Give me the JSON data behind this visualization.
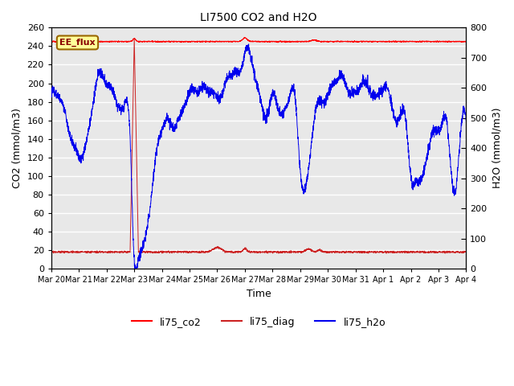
{
  "title": "LI7500 CO2 and H2O",
  "xlabel": "Time",
  "ylabel_left": "CO2 (mmol/m3)",
  "ylabel_right": "H2O (mmol/m3)",
  "ylim_left": [
    0,
    260
  ],
  "ylim_right": [
    0,
    800
  ],
  "yticks_left": [
    0,
    20,
    40,
    60,
    80,
    100,
    120,
    140,
    160,
    180,
    200,
    220,
    240,
    260
  ],
  "yticks_right": [
    0,
    100,
    200,
    300,
    400,
    500,
    600,
    700,
    800
  ],
  "xtick_labels": [
    "Mar 20",
    "Mar 21",
    "Mar 22",
    "Mar 23",
    "Mar 24",
    "Mar 25",
    "Mar 26",
    "Mar 27",
    "Mar 28",
    "Mar 29",
    "Mar 30",
    "Mar 31",
    "Apr 1",
    "Apr 2",
    "Apr 3",
    "Apr 4"
  ],
  "annotation_text": "EE_flux",
  "annotation_bg": "#FFFF99",
  "annotation_border": "#996600",
  "color_co2": "#FF0000",
  "color_diag": "#CC2222",
  "color_h2o": "#0000EE",
  "legend_labels": [
    "li75_co2",
    "li75_diag",
    "li75_h2o"
  ],
  "plot_bg": "#E8E8E8",
  "grid_color": "#FFFFFF",
  "n_points": 3000
}
